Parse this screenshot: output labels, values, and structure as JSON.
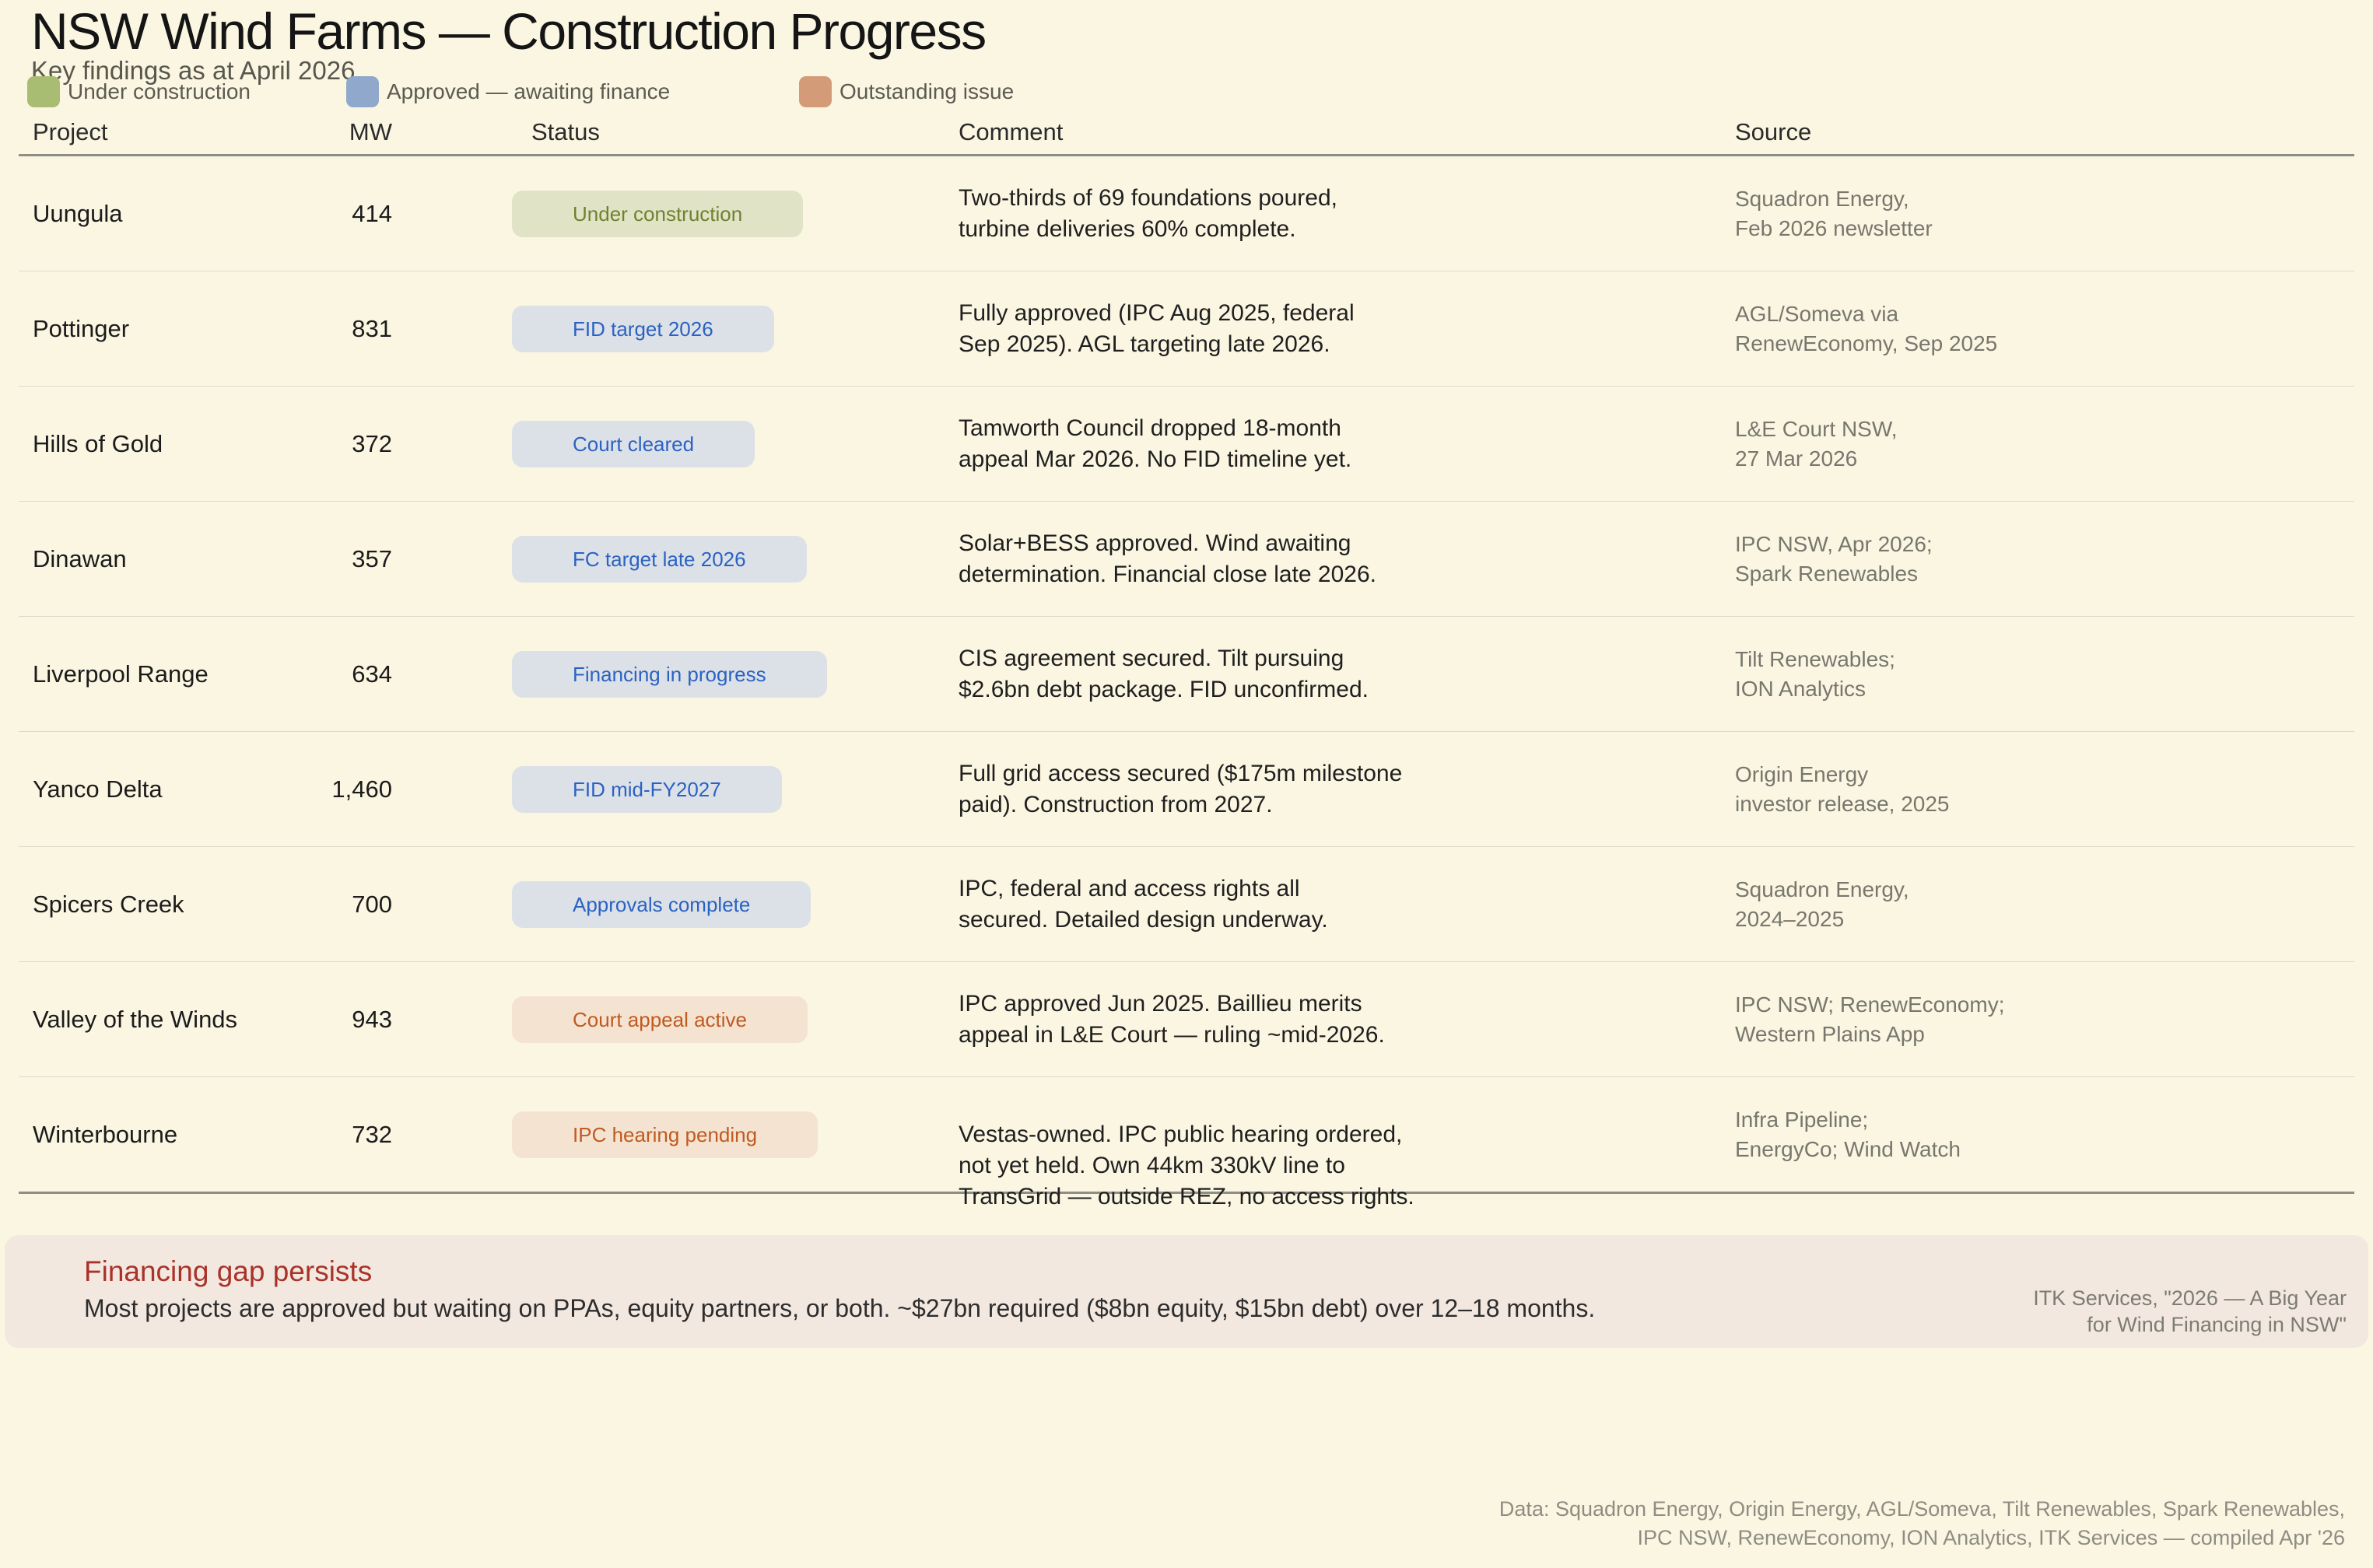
{
  "colors": {
    "background": "#FBF6E2",
    "pill_under_bg": "#E0E3C6",
    "pill_under_text": "#6F8230",
    "pill_approved_bg": "#DCE1E8",
    "pill_approved_text": "#2B62C2",
    "pill_issue_bg": "#F5E3D1",
    "pill_issue_text": "#C05A21",
    "callout_bg": "#F3E8E0",
    "callout_heading": "#A93229"
  },
  "chart_data": {
    "type": "table",
    "title": "NSW Wind Farms — Construction Progress",
    "subtitle": "Key findings as at April 2026",
    "legend": [
      {
        "label": "Under construction",
        "color": "#A8BC72",
        "status_key": "under"
      },
      {
        "label": "Approved — awaiting finance",
        "color": "#8FA8CC",
        "status_key": "approved"
      },
      {
        "label": "Outstanding issue",
        "color": "#D39B78",
        "status_key": "issue"
      }
    ],
    "columns": [
      "Project",
      "MW",
      "Status",
      "Comment",
      "Source"
    ],
    "rows": [
      {
        "project": "Uungula",
        "mw": "414",
        "status": "Under construction",
        "status_type": "under",
        "comment": "Two-thirds of 69 foundations poured,\nturbine deliveries 60% complete.",
        "source": "Squadron Energy,\nFeb 2026 newsletter"
      },
      {
        "project": "Pottinger",
        "mw": "831",
        "status": "FID target 2026",
        "status_type": "approved",
        "comment": "Fully approved (IPC Aug 2025, federal\nSep 2025). AGL targeting late 2026.",
        "source": "AGL/Someva via\nRenewEconomy, Sep 2025"
      },
      {
        "project": "Hills of Gold",
        "mw": "372",
        "status": "Court cleared",
        "status_type": "approved",
        "comment": "Tamworth Council dropped 18-month\nappeal Mar 2026. No FID timeline yet.",
        "source": "L&E Court NSW,\n27 Mar 2026"
      },
      {
        "project": "Dinawan",
        "mw": "357",
        "status": "FC target late 2026",
        "status_type": "approved",
        "comment": "Solar+BESS approved. Wind awaiting\ndetermination. Financial close late 2026.",
        "source": "IPC NSW, Apr 2026;\nSpark Renewables"
      },
      {
        "project": "Liverpool Range",
        "mw": "634",
        "status": "Financing in progress",
        "status_type": "approved",
        "comment": "CIS agreement secured. Tilt pursuing\n$2.6bn debt package. FID unconfirmed.",
        "source": "Tilt Renewables;\nION Analytics"
      },
      {
        "project": "Yanco Delta",
        "mw": "1,460",
        "status": "FID mid-FY2027",
        "status_type": "approved",
        "comment": "Full grid access secured ($175m milestone\npaid). Construction from 2027.",
        "source": "Origin Energy\ninvestor release, 2025"
      },
      {
        "project": "Spicers Creek",
        "mw": "700",
        "status": "Approvals complete",
        "status_type": "approved",
        "comment": "IPC, federal and access rights all\nsecured. Detailed design underway.",
        "source": "Squadron Energy,\n2024–2025"
      },
      {
        "project": "Valley of the Winds",
        "mw": "943",
        "status": "Court appeal active",
        "status_type": "issue",
        "comment": "IPC approved Jun 2025. Baillieu merits\nappeal in L&E Court — ruling ~mid-2026.",
        "source": "IPC NSW; RenewEconomy;\nWestern Plains App"
      },
      {
        "project": "Winterbourne",
        "mw": "732",
        "status": "IPC hearing pending",
        "status_type": "issue",
        "comment": "Vestas-owned. IPC public hearing ordered,\nnot yet held. Own 44km 330kV line to\nTransGrid — outside REZ, no access rights.",
        "source": "Infra Pipeline;\nEnergyCo; Wind Watch"
      }
    ],
    "callout": {
      "heading": "Financing gap persists",
      "body": "Most projects are approved but waiting on PPAs, equity partners, or both. ~$27bn required ($8bn equity, $15bn debt) over 12–18 months.",
      "attribution": "ITK Services, \"2026 — A Big Year\nfor Wind Financing in NSW\""
    },
    "footnote": "Data: Squadron Energy, Origin Energy, AGL/Someva, Tilt Renewables, Spark Renewables,\nIPC NSW, RenewEconomy, ION Analytics, ITK Services — compiled Apr '26"
  }
}
